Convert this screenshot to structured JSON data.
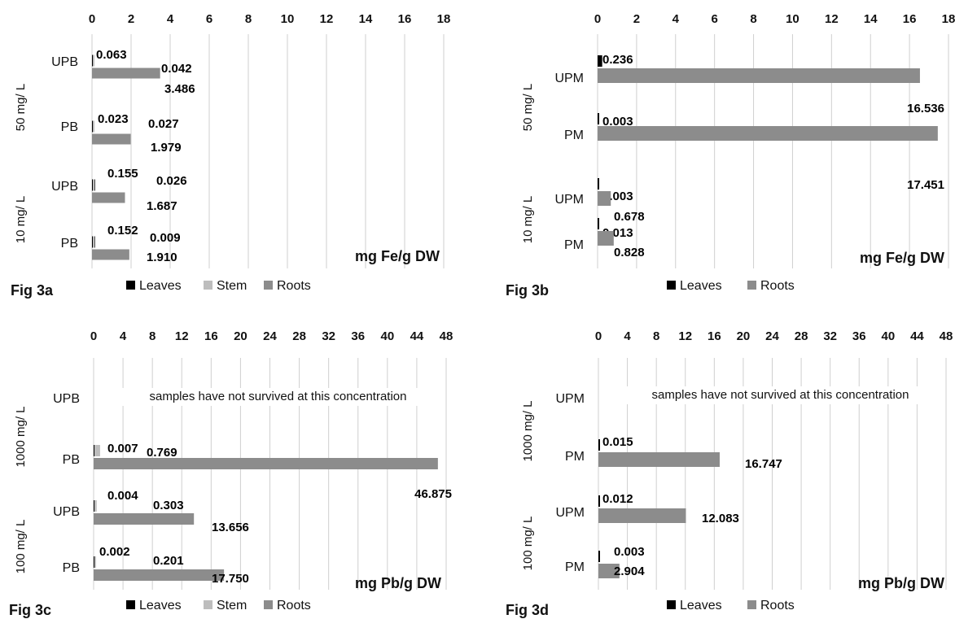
{
  "chart_data": [
    {
      "type": "bar",
      "orientation": "horizontal",
      "figure_label": "Fig 3a",
      "value_axis_label": "mg Fe/g DW",
      "xlim": [
        0,
        18
      ],
      "x_ticks": [
        "0",
        "2",
        "4",
        "6",
        "8",
        "10",
        "12",
        "14",
        "16",
        "18"
      ],
      "gridlines": true,
      "legend_position": "bottom",
      "groups": [
        {
          "label": "50 mg/ L",
          "categories": [
            "UPB",
            "PB"
          ]
        },
        {
          "label": "10 mg/ L",
          "categories": [
            "UPB",
            "PB"
          ]
        }
      ],
      "categories": [
        "UPB",
        "PB",
        "UPB",
        "PB"
      ],
      "series": [
        {
          "name": "Leaves",
          "color": "#000000",
          "values": [
            0.063,
            0.023,
            0.155,
            0.152
          ],
          "labels": [
            "0.063",
            "0.023",
            "0.155",
            "0.152"
          ]
        },
        {
          "name": "Stem",
          "color": "#bdbdbd",
          "values": [
            0.042,
            0.027,
            0.026,
            0.009
          ],
          "labels": [
            "0.042",
            "0.027",
            "0.026",
            "0.009"
          ]
        },
        {
          "name": "Roots",
          "color": "#8c8c8c",
          "values": [
            3.486,
            1.979,
            1.687,
            1.91
          ],
          "labels": [
            "3.486",
            "1.979",
            "1.687",
            "1.910"
          ]
        }
      ]
    },
    {
      "type": "bar",
      "orientation": "horizontal",
      "figure_label": "Fig 3b",
      "value_axis_label": "mg Fe/g DW",
      "xlim": [
        0,
        18
      ],
      "x_ticks": [
        "0",
        "2",
        "4",
        "6",
        "8",
        "10",
        "12",
        "14",
        "16",
        "18"
      ],
      "gridlines": true,
      "legend_position": "bottom",
      "groups": [
        {
          "label": "50 mg/ L",
          "categories": [
            "UPM",
            "PM"
          ]
        },
        {
          "label": "10 mg/ L",
          "categories": [
            "UPM",
            "PM"
          ]
        }
      ],
      "categories": [
        "UPM",
        "PM",
        "UPM",
        "PM"
      ],
      "series": [
        {
          "name": "Leaves",
          "color": "#000000",
          "values": [
            0.236,
            0.003,
            0.003,
            0.013
          ],
          "labels": [
            "0.236",
            "0.003",
            "0.003",
            "0.013"
          ]
        },
        {
          "name": "Roots",
          "color": "#8c8c8c",
          "values": [
            16.536,
            17.451,
            0.678,
            0.828
          ],
          "labels": [
            "16.536",
            "17.451",
            "0.678",
            "0.828"
          ]
        }
      ]
    },
    {
      "type": "bar",
      "orientation": "horizontal",
      "figure_label": "Fig 3c",
      "value_axis_label": "mg Pb/g DW",
      "xlim": [
        0,
        48
      ],
      "x_ticks": [
        "0",
        "4",
        "8",
        "12",
        "16",
        "20",
        "24",
        "28",
        "32",
        "36",
        "40",
        "44",
        "48"
      ],
      "gridlines": true,
      "legend_position": "bottom",
      "annotation": "samples have not survived at this concentration",
      "groups": [
        {
          "label": "1000 mg/ L",
          "categories": [
            "UPB",
            "PB"
          ]
        },
        {
          "label": "100 mg/ L",
          "categories": [
            "UPB",
            "PB"
          ]
        }
      ],
      "categories": [
        "UPB",
        "PB",
        "UPB",
        "PB"
      ],
      "series": [
        {
          "name": "Leaves",
          "color": "#000000",
          "values": [
            null,
            0.007,
            0.004,
            0.002
          ],
          "labels": [
            "",
            "0.007",
            "0.004",
            "0.002"
          ]
        },
        {
          "name": "Stem",
          "color": "#bdbdbd",
          "values": [
            null,
            0.769,
            0.303,
            0.201
          ],
          "labels": [
            "",
            "0.769",
            "0.303",
            "0.201"
          ]
        },
        {
          "name": "Roots",
          "color": "#8c8c8c",
          "values": [
            null,
            46.875,
            13.656,
            17.75
          ],
          "labels": [
            "",
            "46.875",
            "13.656",
            "17.750"
          ]
        }
      ]
    },
    {
      "type": "bar",
      "orientation": "horizontal",
      "figure_label": "Fig 3d",
      "value_axis_label": "mg Pb/g DW",
      "xlim": [
        0,
        48
      ],
      "x_ticks": [
        "0",
        "4",
        "8",
        "12",
        "16",
        "20",
        "24",
        "28",
        "32",
        "36",
        "40",
        "44",
        "48"
      ],
      "gridlines": true,
      "legend_position": "bottom",
      "annotation": "samples have not survived at this concentration",
      "groups": [
        {
          "label": "1000 mg/ L",
          "categories": [
            "UPM",
            "PM"
          ]
        },
        {
          "label": "100 mg/ L",
          "categories": [
            "UPM",
            "PM"
          ]
        }
      ],
      "categories": [
        "UPM",
        "PM",
        "UPM",
        "PM"
      ],
      "series": [
        {
          "name": "Leaves",
          "color": "#000000",
          "values": [
            null,
            0.015,
            0.012,
            0.003
          ],
          "labels": [
            "",
            "0.015",
            "0.012",
            "0.003"
          ]
        },
        {
          "name": "Roots",
          "color": "#8c8c8c",
          "values": [
            null,
            16.747,
            12.083,
            2.904
          ],
          "labels": [
            "",
            "16.747",
            "12.083",
            "2.904"
          ]
        }
      ]
    }
  ]
}
